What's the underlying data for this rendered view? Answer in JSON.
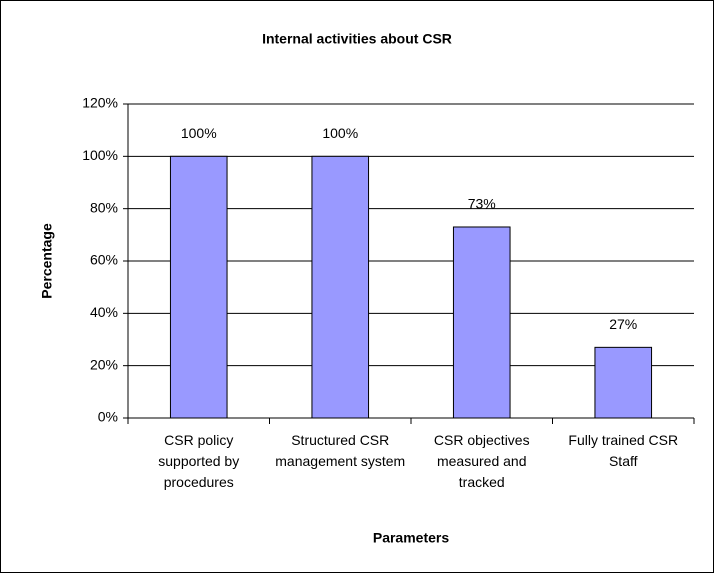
{
  "chart_data": {
    "type": "bar",
    "title": "Internal activities about CSR",
    "x_label": "Parameters",
    "y_label": "Percentage",
    "categories": [
      "CSR policy supported by procedures",
      "Structured CSR management system",
      "CSR objectives measured and tracked",
      "Fully trained CSR Staff"
    ],
    "values": [
      100,
      100,
      73,
      27
    ],
    "value_labels": [
      "100%",
      "100%",
      "73%",
      "27%"
    ],
    "color": "#9999ff",
    "ylim": [
      0,
      120
    ],
    "yticks": [
      {
        "value": 0,
        "label": "0%"
      },
      {
        "value": 20,
        "label": "20%"
      },
      {
        "value": 40,
        "label": "40%"
      },
      {
        "value": 60,
        "label": "60%"
      },
      {
        "value": 80,
        "label": "80%"
      },
      {
        "value": 100,
        "label": "100%"
      },
      {
        "value": 120,
        "label": "120%"
      }
    ],
    "grid": true
  }
}
